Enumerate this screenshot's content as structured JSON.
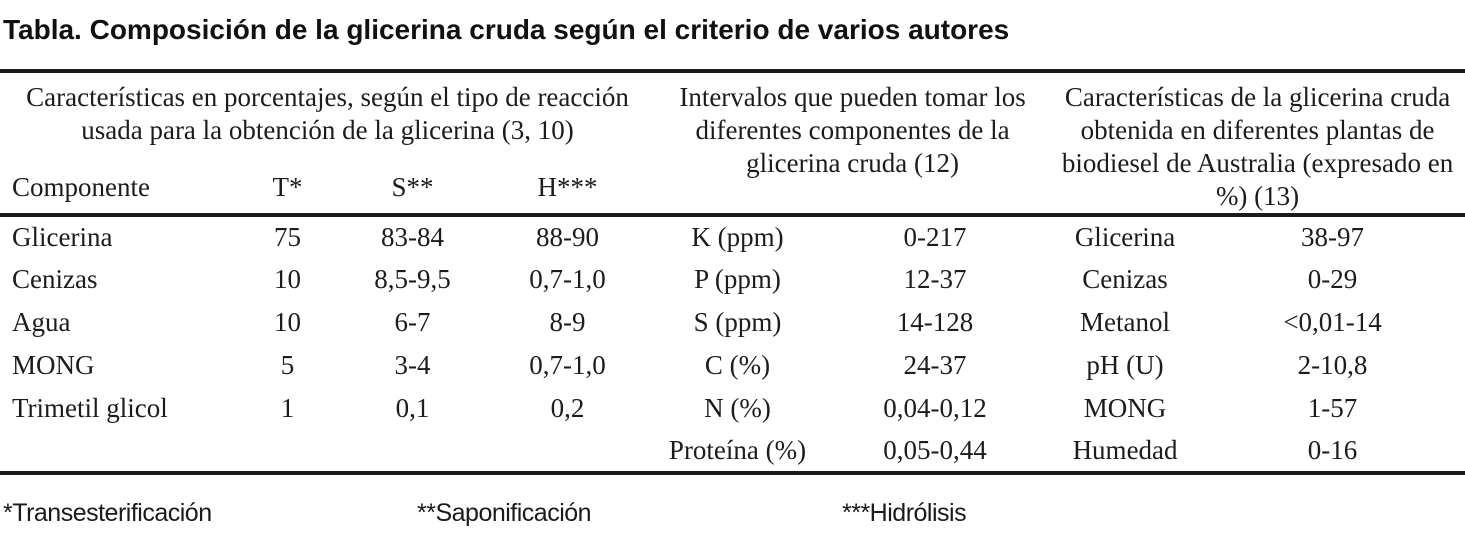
{
  "title": "Tabla. Composición de la glicerina cruda según el criterio de varios autores",
  "table": {
    "group_headers": [
      "Características en porcentajes, según el tipo de reacción usada para la obtención de la glicerina (3, 10)",
      "Intervalos que pueden tomar los diferentes componentes de la glicerina cruda (12)",
      "Características de la glicerina cruda obtenida en diferentes plantas de biodiesel de Australia (expresado en %) (13)"
    ],
    "sub_headers": [
      "Componente",
      "T*",
      "S**",
      "H***"
    ],
    "rows": [
      [
        "Glicerina",
        "75",
        "83-84",
        "88-90",
        "K (ppm)",
        "0-217",
        "Glicerina",
        "38-97"
      ],
      [
        "Cenizas",
        "10",
        "8,5-9,5",
        "0,7-1,0",
        "P (ppm)",
        "12-37",
        "Cenizas",
        "0-29"
      ],
      [
        "Agua",
        "10",
        "6-7",
        "8-9",
        "S (ppm)",
        "14-128",
        "Metanol",
        "<0,01-14"
      ],
      [
        "MONG",
        "5",
        "3-4",
        "0,7-1,0",
        "C (%)",
        "24-37",
        "pH (U)",
        "2-10,8"
      ],
      [
        "Trimetil glicol",
        "1",
        "0,1",
        "0,2",
        "N (%)",
        "0,04-0,12",
        "MONG",
        "1-57"
      ],
      [
        "",
        "",
        "",
        "",
        "Proteína (%)",
        "0,05-0,44",
        "Humedad",
        "0-16"
      ]
    ],
    "footnotes": [
      "*Transesterificación",
      "**Saponificación",
      "***Hidrólisis"
    ]
  },
  "colors": {
    "text": "#1c1c1c",
    "rule": "#1a1a1a",
    "background": "#ffffff"
  }
}
